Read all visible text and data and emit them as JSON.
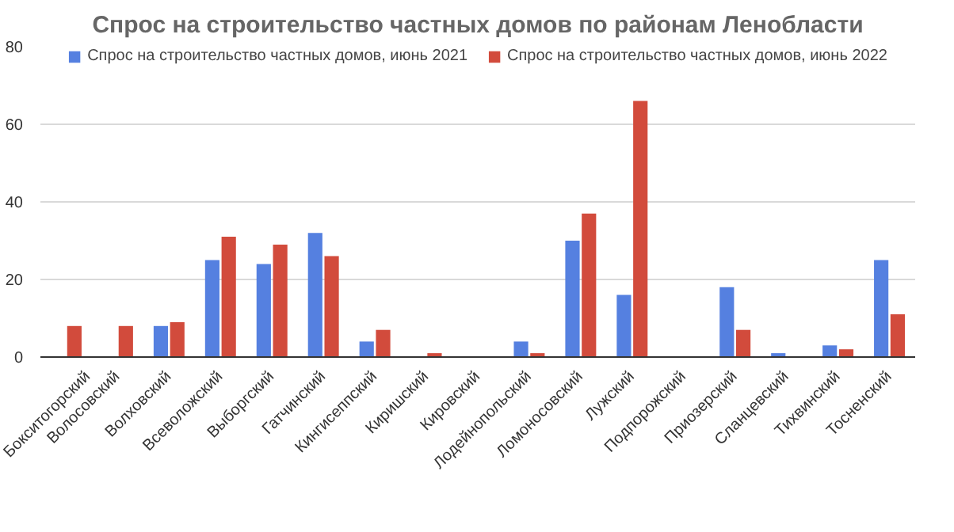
{
  "chart_data": {
    "type": "bar",
    "title": "Спрос на строительство частных домов по районам Ленобласти",
    "categories": [
      "Бокситогорский",
      "Волосовский",
      "Волховский",
      "Всеволожский",
      "Выборгский",
      "Гатчинский",
      "Кингисеппский",
      "Киришский",
      "Кировский",
      "Лодейнопольский",
      "Ломоносовский",
      "Лужский",
      "Подпорожский",
      "Приозерский",
      "Сланцевский",
      "Тихвинский",
      "Тосненский"
    ],
    "series": [
      {
        "name": "Спрос на строительство частных домов, июнь 2021",
        "color": "#5580e0",
        "values": [
          0,
          0,
          8,
          25,
          24,
          32,
          4,
          0,
          0,
          4,
          30,
          16,
          0,
          18,
          1,
          3,
          25
        ]
      },
      {
        "name": "Спрос на строительство частных домов, июнь 2022",
        "color": "#d24b3c",
        "values": [
          8,
          8,
          9,
          31,
          29,
          26,
          7,
          1,
          0,
          1,
          37,
          66,
          0,
          7,
          0,
          2,
          11
        ]
      }
    ],
    "ylim": [
      0,
      80
    ],
    "yticks": [
      0,
      20,
      40,
      60,
      80
    ],
    "grid": "y",
    "legend": "top"
  }
}
